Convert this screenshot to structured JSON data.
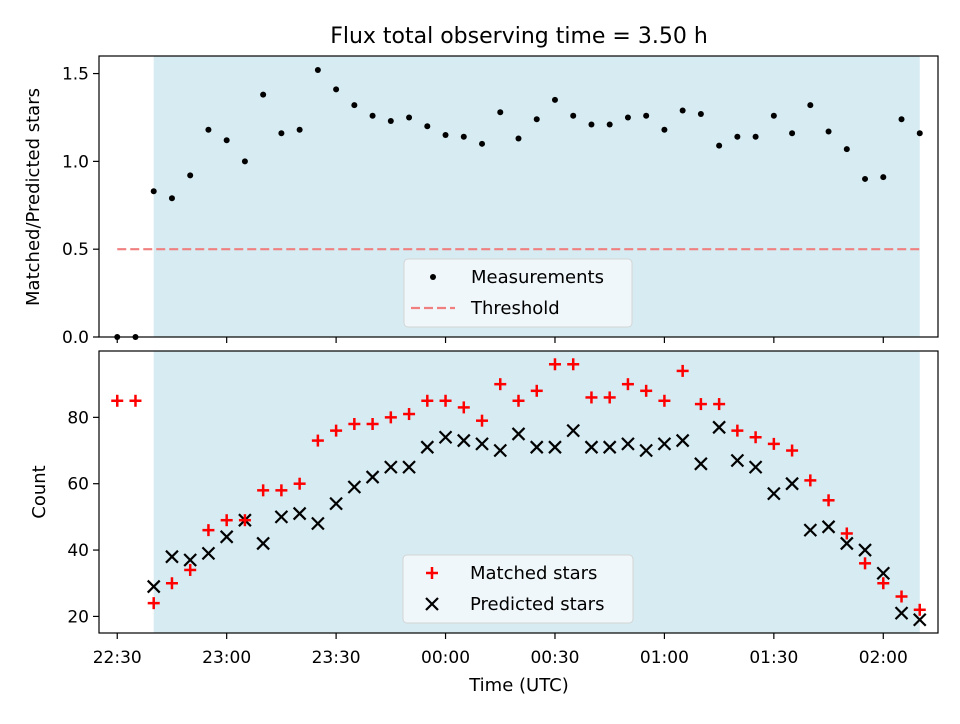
{
  "figure": {
    "title": "Flux total observing time = 3.50 h"
  },
  "chart_data": [
    {
      "type": "scatter",
      "panel": "top",
      "ylabel": "Matched/Predicted stars",
      "ylim": [
        0,
        1.6
      ],
      "yticks": [
        "0.0",
        "0.5",
        "1.0",
        "1.5"
      ],
      "xlim": [
        "22:25",
        "02:15"
      ],
      "shaded_span": [
        "22:40",
        "02:10"
      ],
      "legend_location": "lower-center",
      "threshold": {
        "name": "Threshold",
        "value": 0.5,
        "x_start": "22:30",
        "x_end": "02:10",
        "color": "#f08080",
        "style": "dashed"
      },
      "series": [
        {
          "name": "Measurements",
          "color": "#000000",
          "marker": "dot",
          "x": [
            "22:30",
            "22:35",
            "22:40",
            "22:45",
            "22:50",
            "22:55",
            "23:00",
            "23:05",
            "23:10",
            "23:15",
            "23:20",
            "23:25",
            "23:30",
            "23:35",
            "23:40",
            "23:45",
            "23:50",
            "23:55",
            "00:00",
            "00:05",
            "00:10",
            "00:15",
            "00:20",
            "00:25",
            "00:30",
            "00:35",
            "00:40",
            "00:45",
            "00:50",
            "00:55",
            "01:00",
            "01:05",
            "01:10",
            "01:15",
            "01:20",
            "01:25",
            "01:30",
            "01:35",
            "01:40",
            "01:45",
            "01:50",
            "01:55",
            "02:00",
            "02:05",
            "02:10"
          ],
          "y": [
            0.0,
            0.0,
            0.83,
            0.79,
            0.92,
            1.18,
            1.12,
            1.0,
            1.38,
            1.16,
            1.18,
            1.52,
            1.41,
            1.32,
            1.26,
            1.23,
            1.25,
            1.2,
            1.15,
            1.14,
            1.1,
            1.28,
            1.13,
            1.24,
            1.35,
            1.26,
            1.21,
            1.21,
            1.25,
            1.26,
            1.18,
            1.29,
            1.27,
            1.09,
            1.14,
            1.14,
            1.26,
            1.16,
            1.32,
            1.17,
            1.07,
            0.9,
            0.91,
            1.24,
            1.16
          ]
        }
      ]
    },
    {
      "type": "scatter",
      "panel": "bottom",
      "xlabel": "Time (UTC)",
      "ylabel": "Count",
      "ylim": [
        15,
        100
      ],
      "yticks": [
        "20",
        "40",
        "60",
        "80"
      ],
      "xlim": [
        "22:25",
        "02:15"
      ],
      "xticks": [
        "22:30",
        "23:00",
        "23:30",
        "00:00",
        "00:30",
        "01:00",
        "01:30",
        "02:00"
      ],
      "shaded_span": [
        "22:40",
        "02:10"
      ],
      "legend_location": "lower-center",
      "series": [
        {
          "name": "Matched stars",
          "color": "#ff0000",
          "marker": "plus",
          "x": [
            "22:30",
            "22:35",
            "22:40",
            "22:45",
            "22:50",
            "22:55",
            "23:00",
            "23:05",
            "23:10",
            "23:15",
            "23:20",
            "23:25",
            "23:30",
            "23:35",
            "23:40",
            "23:45",
            "23:50",
            "23:55",
            "00:00",
            "00:05",
            "00:10",
            "00:15",
            "00:20",
            "00:25",
            "00:30",
            "00:35",
            "00:40",
            "00:45",
            "00:50",
            "00:55",
            "01:00",
            "01:05",
            "01:10",
            "01:15",
            "01:20",
            "01:25",
            "01:30",
            "01:35",
            "01:40",
            "01:45",
            "01:50",
            "01:55",
            "02:00",
            "02:05",
            "02:10"
          ],
          "y": [
            85,
            85,
            24,
            30,
            34,
            46,
            49,
            49,
            58,
            58,
            60,
            73,
            76,
            78,
            78,
            80,
            81,
            85,
            85,
            83,
            79,
            90,
            85,
            88,
            96,
            96,
            86,
            86,
            90,
            88,
            85,
            94,
            84,
            84,
            76,
            74,
            72,
            70,
            61,
            55,
            45,
            36,
            30,
            26,
            22
          ]
        },
        {
          "name": "Predicted stars",
          "color": "#000000",
          "marker": "x",
          "x": [
            "22:40",
            "22:45",
            "22:50",
            "22:55",
            "23:00",
            "23:05",
            "23:10",
            "23:15",
            "23:20",
            "23:25",
            "23:30",
            "23:35",
            "23:40",
            "23:45",
            "23:50",
            "23:55",
            "00:00",
            "00:05",
            "00:10",
            "00:15",
            "00:20",
            "00:25",
            "00:30",
            "00:35",
            "00:40",
            "00:45",
            "00:50",
            "00:55",
            "01:00",
            "01:05",
            "01:10",
            "01:15",
            "01:20",
            "01:25",
            "01:30",
            "01:35",
            "01:40",
            "01:45",
            "01:50",
            "01:55",
            "02:00",
            "02:05",
            "02:10"
          ],
          "y": [
            29,
            38,
            37,
            39,
            44,
            49,
            42,
            50,
            51,
            48,
            54,
            59,
            62,
            65,
            65,
            71,
            74,
            73,
            72,
            70,
            75,
            71,
            71,
            76,
            71,
            71,
            72,
            70,
            72,
            73,
            66,
            77,
            67,
            65,
            57,
            60,
            46,
            47,
            42,
            40,
            33,
            21,
            19
          ]
        }
      ]
    }
  ]
}
